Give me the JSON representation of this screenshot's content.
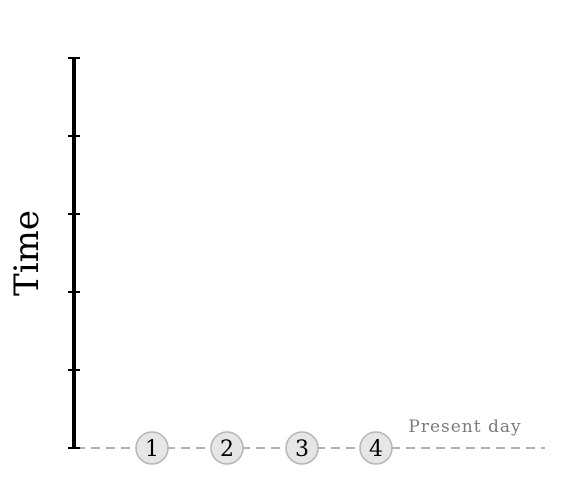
{
  "axis": {
    "label": "Time",
    "tick_count": 6,
    "color": "#000000"
  },
  "baseline": {
    "label": "Present day",
    "line_color": "#9a9a9a",
    "label_color": "#7a7a7a"
  },
  "nodes": [
    {
      "label": "1"
    },
    {
      "label": "2"
    },
    {
      "label": "3"
    },
    {
      "label": "4"
    }
  ],
  "node_style": {
    "fill": "#e6e6e6",
    "stroke": "#b5b5b5"
  }
}
